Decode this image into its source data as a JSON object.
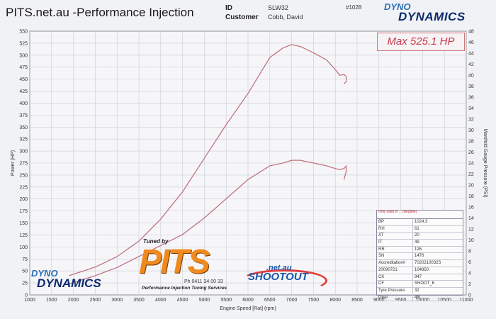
{
  "header": {
    "title": "PITS.net.au -Performance Injection",
    "id_label": "ID",
    "id_value": "SLW32",
    "customer_label": "Customer",
    "customer_value": "Cobb, David",
    "record": "#1028"
  },
  "brand_top": {
    "line1": "DYNO",
    "line2": "DYNAMICS"
  },
  "max_label": "Max 525.1 HP",
  "params": {
    "title": "Only valid in ... (illegible)",
    "rows": [
      {
        "k": "BP",
        "v": "1024.3"
      },
      {
        "k": "RH",
        "v": "61"
      },
      {
        "k": "AT",
        "v": "20"
      },
      {
        "k": "IT",
        "v": "49"
      },
      {
        "k": "RR",
        "v": "126"
      },
      {
        "k": "SN",
        "v": "1476"
      },
      {
        "k": "Accreditation#",
        "v": "7020210032S"
      },
      {
        "k": "20090721",
        "v": "104850"
      },
      {
        "k": "CK",
        "v": "947"
      },
      {
        "k": "CF",
        "v": "SHOOT_6"
      },
      {
        "k": "Tyre Pressure",
        "v": "32"
      },
      {
        "k": "Gear",
        "v": "4th"
      }
    ]
  },
  "brand_bottom": {
    "line1": "DYNO",
    "line2": "DYNAMICS"
  },
  "tuner": {
    "tuned_by": "Tuned by",
    "name": "PITS",
    "phone": "Ph 0411 34 00 33",
    "subtitle": "Performance Injection Tuning Services"
  },
  "shootout": {
    "net": ".net.au",
    "name": "SHOOTOUT"
  },
  "colors": {
    "curve": "#c0737f",
    "grid": "#c9ccd8",
    "axis": "#555555"
  },
  "chart_data": {
    "type": "line",
    "xlabel": "Engine Speed [Rat] (rpm)",
    "ylabel": "Power (HP)",
    "y2label": "Manifold Gauge Pressure (PSI)",
    "xlim": [
      1000,
      11000
    ],
    "ylim": [
      0,
      550
    ],
    "y2lim": [
      0,
      48
    ],
    "x_ticks": [
      1000,
      1500,
      2000,
      2500,
      3000,
      3500,
      4000,
      4500,
      5000,
      5500,
      6000,
      6500,
      7000,
      7500,
      8000,
      8500,
      9000,
      9500,
      10000,
      10500,
      11000
    ],
    "y_ticks": [
      0,
      25,
      50,
      75,
      100,
      125,
      150,
      175,
      200,
      225,
      250,
      275,
      300,
      325,
      350,
      375,
      400,
      425,
      450,
      475,
      500,
      525,
      550
    ],
    "y2_ticks": [
      0,
      2,
      4,
      6,
      8,
      10,
      12,
      14,
      16,
      18,
      20,
      22,
      24,
      26,
      28,
      30,
      32,
      34,
      36,
      38,
      40,
      42,
      44,
      46,
      48
    ],
    "grid": true,
    "series": [
      {
        "name": "",
        "axis": "left",
        "x": [
          1900,
          2500,
          3000,
          3500,
          4000,
          4500,
          5000,
          5500,
          6000,
          6500,
          6800,
          7000,
          7200,
          7500,
          7800,
          8000,
          8100,
          8200,
          8250,
          8250,
          8200
        ],
        "y": [
          40,
          58,
          80,
          112,
          158,
          215,
          285,
          355,
          420,
          495,
          515,
          522,
          518,
          505,
          490,
          470,
          458,
          460,
          455,
          445,
          440
        ]
      },
      {
        "name": "",
        "axis": "right",
        "x": [
          1900,
          2500,
          3000,
          3500,
          4000,
          4500,
          5000,
          5500,
          6000,
          6500,
          6800,
          7000,
          7200,
          7500,
          7800,
          8000,
          8100,
          8200,
          8250,
          8250,
          8200
        ],
        "y": [
          2,
          3.5,
          5,
          7,
          9,
          11,
          14,
          17.5,
          21,
          23.5,
          24,
          24.5,
          24.5,
          24,
          23.5,
          23,
          22.8,
          23,
          23.5,
          22.5,
          21
        ]
      }
    ]
  }
}
